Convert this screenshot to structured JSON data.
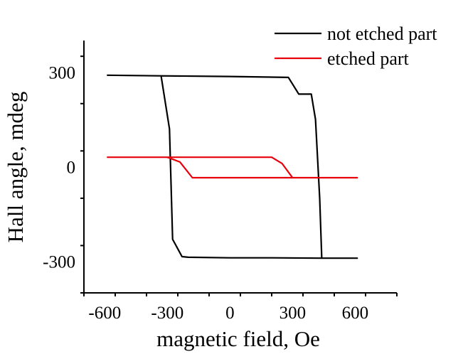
{
  "chart_data": {
    "type": "line",
    "title": "",
    "xlabel": "magnetic field, Oe",
    "ylabel": "Hall angle, mdeg",
    "xlim": [
      -700,
      800
    ],
    "ylim": [
      -400,
      400
    ],
    "xticks": [
      -600,
      -300,
      0,
      300,
      600
    ],
    "xtick_labels": [
      "-600",
      "-300",
      "0",
      "300",
      "600"
    ],
    "yticks": [
      -300,
      0,
      300
    ],
    "ytick_labels": [
      "-300",
      "0",
      "300"
    ],
    "grid": false,
    "legend_position": "top-right",
    "series": [
      {
        "name": "not etched part",
        "color": "#000000",
        "points": [
          [
            -590,
            290
          ],
          [
            -340,
            288
          ],
          [
            -330,
            288
          ],
          [
            -290,
            120
          ],
          [
            -275,
            -230
          ],
          [
            -230,
            -285
          ],
          [
            -200,
            -287
          ],
          [
            0,
            -289
          ],
          [
            200,
            -289
          ],
          [
            440,
            -290
          ],
          [
            610,
            -290
          ],
          [
            440,
            -290
          ],
          [
            430,
            -100
          ],
          [
            410,
            150
          ],
          [
            390,
            230
          ],
          [
            370,
            230
          ],
          [
            330,
            230
          ],
          [
            280,
            283
          ],
          [
            0,
            286
          ],
          [
            -330,
            288
          ],
          [
            -590,
            290
          ]
        ]
      },
      {
        "name": "etched part",
        "color": "#e8000b",
        "points": [
          [
            -590,
            30
          ],
          [
            -300,
            30
          ],
          [
            -240,
            15
          ],
          [
            -180,
            -35
          ],
          [
            0,
            -35
          ],
          [
            300,
            -35
          ],
          [
            610,
            -35
          ],
          [
            300,
            -35
          ],
          [
            250,
            10
          ],
          [
            200,
            30
          ],
          [
            0,
            30
          ],
          [
            -590,
            30
          ]
        ]
      }
    ]
  }
}
